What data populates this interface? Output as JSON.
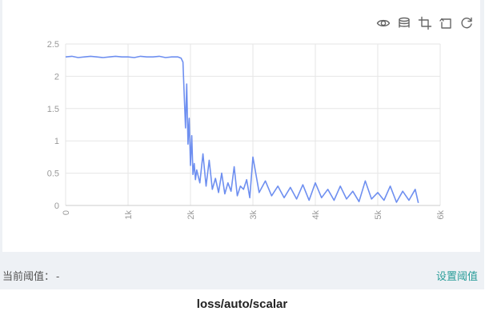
{
  "toolbar": {
    "icons": [
      "eye-icon",
      "layers-icon",
      "crop-icon",
      "undo-icon",
      "refresh-icon"
    ]
  },
  "threshold": {
    "label": "当前阈值：",
    "value": "-",
    "set_label": "设置阈值"
  },
  "title": "loss/auto/scalar",
  "colors": {
    "line": "#6e8ff0",
    "grid": "#e6e6e6",
    "axis": "#cccccc",
    "tick_text": "#999999",
    "link": "#2a9d99"
  },
  "chart_data": {
    "type": "line",
    "title": "loss/auto/scalar",
    "xlabel": "",
    "ylabel": "",
    "xlim": [
      0,
      6000
    ],
    "ylim": [
      0,
      2.5
    ],
    "x_ticks": [
      0,
      1000,
      2000,
      3000,
      4000,
      5000,
      6000
    ],
    "x_tick_labels": [
      "0",
      "1k",
      "2k",
      "3k",
      "4k",
      "5k",
      "6k"
    ],
    "y_ticks": [
      0,
      0.5,
      1,
      1.5,
      2,
      2.5
    ],
    "y_tick_labels": [
      "0",
      "0.5",
      "1",
      "1.5",
      "2",
      "2.5"
    ],
    "grid": true,
    "series": [
      {
        "x": [
          0,
          100,
          200,
          300,
          400,
          500,
          600,
          700,
          800,
          900,
          1000,
          1100,
          1200,
          1300,
          1400,
          1500,
          1600,
          1700,
          1800,
          1850,
          1880,
          1900,
          1920,
          1940,
          1960,
          1980,
          2000,
          2020,
          2040,
          2060,
          2080,
          2100,
          2150,
          2200,
          2250,
          2300,
          2350,
          2400,
          2450,
          2500,
          2550,
          2600,
          2650,
          2700,
          2750,
          2800,
          2850,
          2900,
          2950,
          3000,
          3100,
          3200,
          3300,
          3400,
          3500,
          3600,
          3700,
          3800,
          3900,
          4000,
          4100,
          4200,
          4300,
          4400,
          4500,
          4600,
          4700,
          4800,
          4900,
          5000,
          5100,
          5200,
          5300,
          5400,
          5500,
          5600,
          5650
        ],
        "y": [
          2.3,
          2.31,
          2.29,
          2.3,
          2.31,
          2.3,
          2.29,
          2.3,
          2.31,
          2.3,
          2.3,
          2.29,
          2.31,
          2.3,
          2.3,
          2.31,
          2.29,
          2.3,
          2.3,
          2.28,
          2.22,
          1.7,
          1.2,
          1.88,
          0.95,
          1.35,
          0.62,
          1.08,
          0.48,
          0.65,
          0.4,
          0.55,
          0.35,
          0.8,
          0.3,
          0.7,
          0.25,
          0.42,
          0.2,
          0.5,
          0.18,
          0.35,
          0.22,
          0.6,
          0.15,
          0.3,
          0.25,
          0.4,
          0.12,
          0.75,
          0.2,
          0.38,
          0.15,
          0.3,
          0.12,
          0.28,
          0.1,
          0.32,
          0.08,
          0.35,
          0.12,
          0.25,
          0.08,
          0.3,
          0.1,
          0.22,
          0.06,
          0.38,
          0.1,
          0.2,
          0.08,
          0.3,
          0.05,
          0.22,
          0.08,
          0.25,
          0.04
        ]
      }
    ]
  }
}
